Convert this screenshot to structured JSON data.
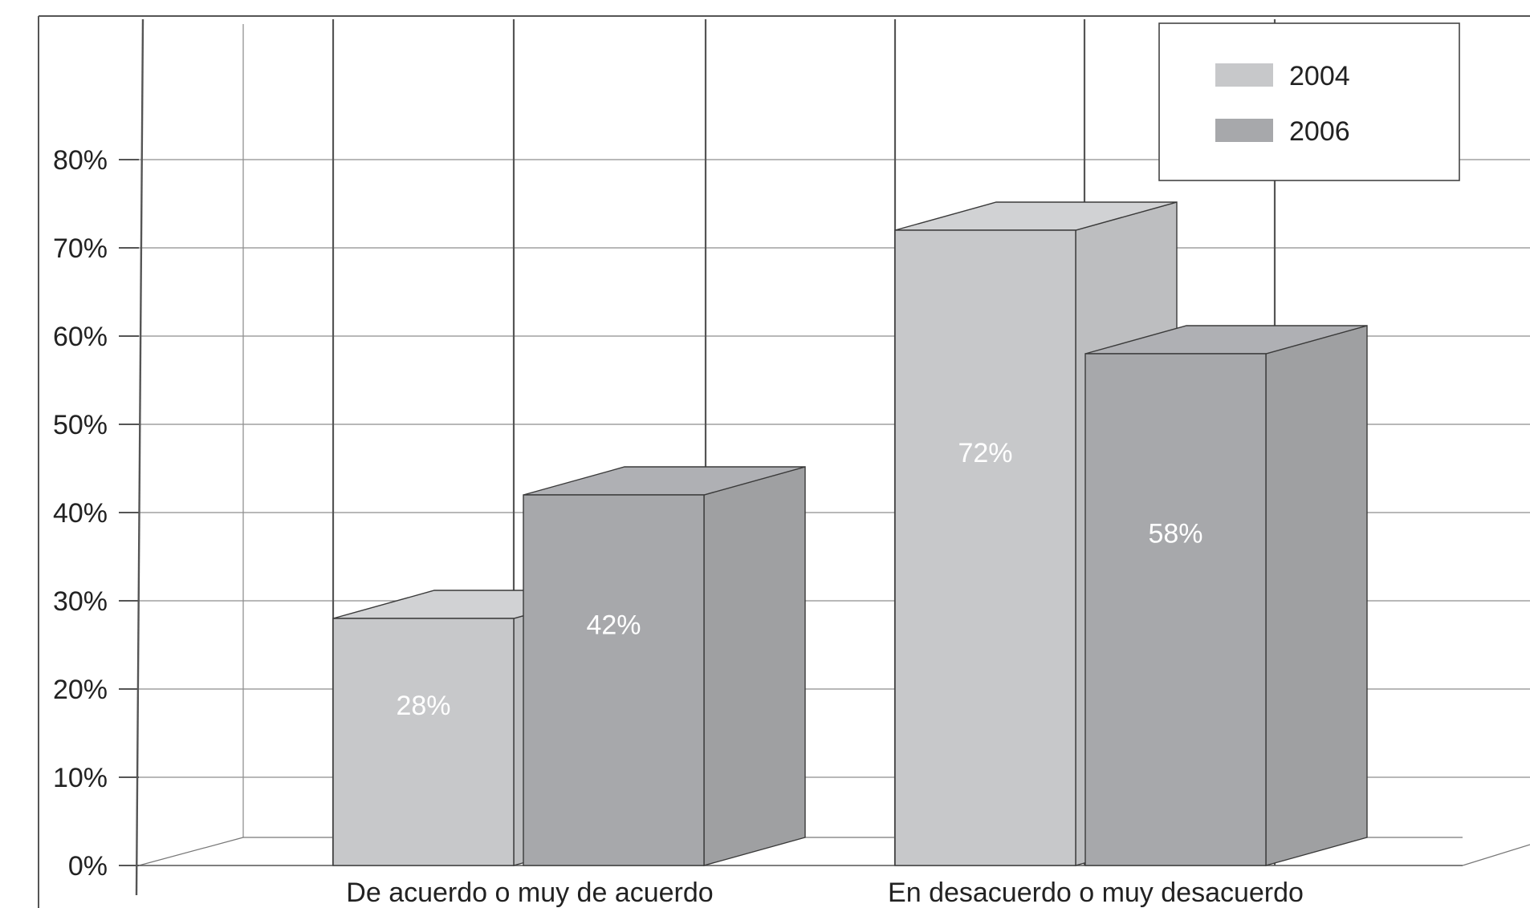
{
  "chart_data": {
    "type": "bar",
    "title": "",
    "xlabel": "",
    "ylabel": "",
    "categories": [
      "De acuerdo o muy de acuerdo",
      "En desacuerdo o muy desacuerdo"
    ],
    "series": [
      {
        "name": "2004",
        "values": [
          28,
          72
        ],
        "labels": [
          "28%",
          "72%"
        ],
        "color": "#c7c8ca"
      },
      {
        "name": "2006",
        "values": [
          42,
          58
        ],
        "labels": [
          "42%",
          "58%"
        ],
        "color": "#a7a8ab"
      }
    ],
    "y_ticks": [
      "0%",
      "10%",
      "20%",
      "30%",
      "40%",
      "50%",
      "60%",
      "70%",
      "80%"
    ],
    "ylim": [
      0,
      80
    ],
    "grid": true,
    "legend_position": "top-right",
    "style": "3d"
  }
}
